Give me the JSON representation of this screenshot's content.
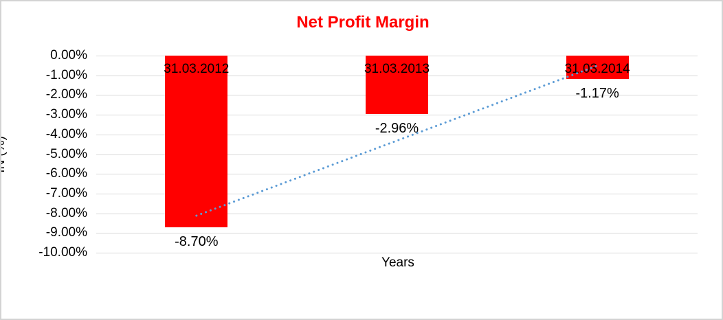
{
  "frame": {
    "background": "#FFFFFF",
    "border_color": "#D3D3D3"
  },
  "chart_data": {
    "type": "bar",
    "title": "Net Profit Margin",
    "title_color": "#FF0000",
    "xlabel": "Years",
    "ylabel": "IN (%)",
    "categories": [
      "31.03.2012",
      "31.03.2013",
      "31.03.2014"
    ],
    "values": [
      -8.7,
      -2.96,
      -1.17
    ],
    "value_labels": [
      "-8.70%",
      "-2.96%",
      "-1.17%"
    ],
    "bar_color": "#FF0000",
    "ylim": [
      -10,
      0
    ],
    "ytick_labels": [
      "0.00%",
      "-1.00%",
      "-2.00%",
      "-3.00%",
      "-4.00%",
      "-5.00%",
      "-6.00%",
      "-7.00%",
      "-8.00%",
      "-9.00%",
      "-10.00%"
    ],
    "grid": true,
    "gridline_color": "#D9D9D9",
    "legend": "none",
    "trendline": {
      "style": "dotted",
      "color": "#5B9BD5",
      "start_value": -8.12,
      "end_value": -0.51
    }
  }
}
